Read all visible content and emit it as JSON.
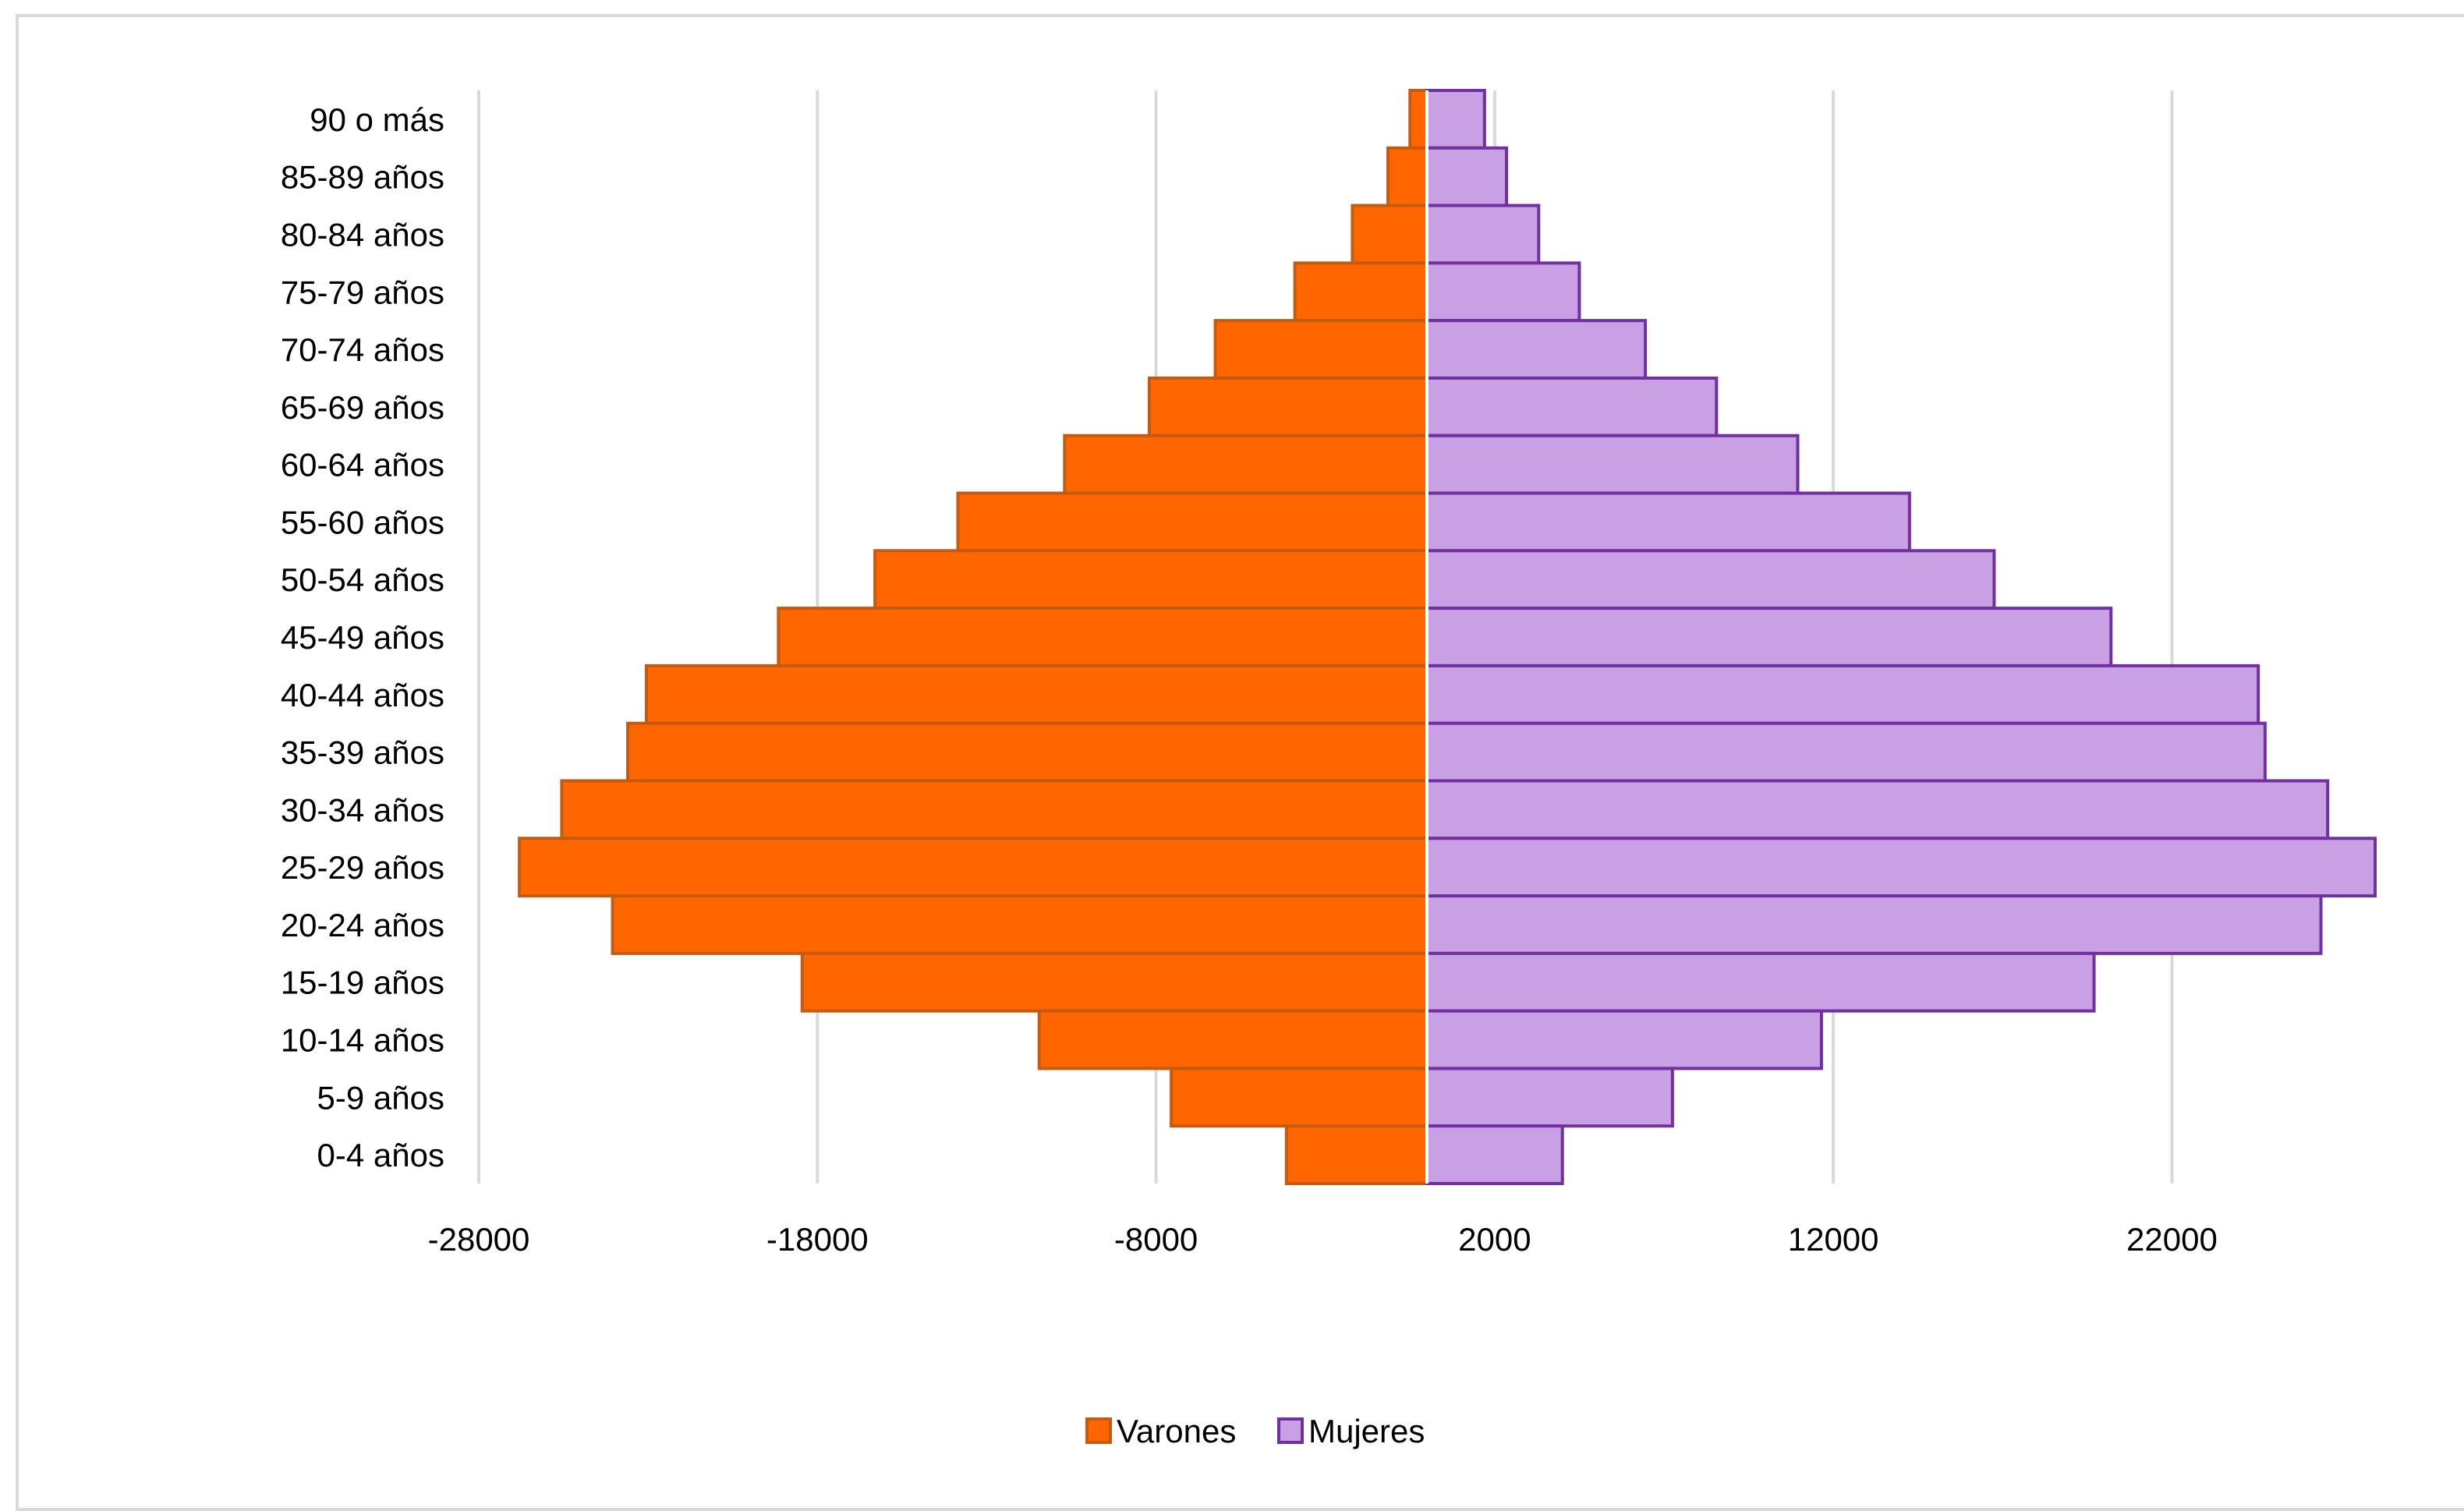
{
  "chart_data": {
    "type": "bar",
    "orientation": "horizontal",
    "stacked": "diverging",
    "categories": [
      "90 o más",
      "85-89 años",
      "80-84 años",
      "75-79 años",
      "70-74 años",
      "65-69 años",
      "60-64 años",
      "55-60 años",
      "50-54 años",
      "45-49 años",
      "40-44 años",
      "35-39 años",
      "30-34 años",
      "25-29 años",
      "20-24 años",
      "15-19 años",
      "10-14 años",
      "5-9 años",
      "0-4 años"
    ],
    "series": [
      {
        "name": "Varones",
        "color": "#ff6600",
        "stroke": "#c55a11",
        "values": [
          -500,
          -1150,
          -2200,
          -3900,
          -6250,
          -8200,
          -10700,
          -13850,
          -16300,
          -19150,
          -23050,
          -23600,
          -25550,
          -26800,
          -24050,
          -18450,
          -11450,
          -7550,
          -4150
        ]
      },
      {
        "name": "Mujeres",
        "color": "#c9a0e3",
        "stroke": "#7030a0",
        "values": [
          1700,
          2350,
          3300,
          4500,
          6450,
          8550,
          10950,
          14250,
          16750,
          20200,
          24550,
          24750,
          26600,
          28000,
          26400,
          19700,
          11650,
          7250,
          4000
        ]
      }
    ],
    "xticks": [
      "-28000",
      "-18000",
      "-8000",
      "2000",
      "12000",
      "22000"
    ],
    "xlim": [
      -28000,
      28000
    ],
    "grid": true,
    "legend": "bottom-center"
  }
}
